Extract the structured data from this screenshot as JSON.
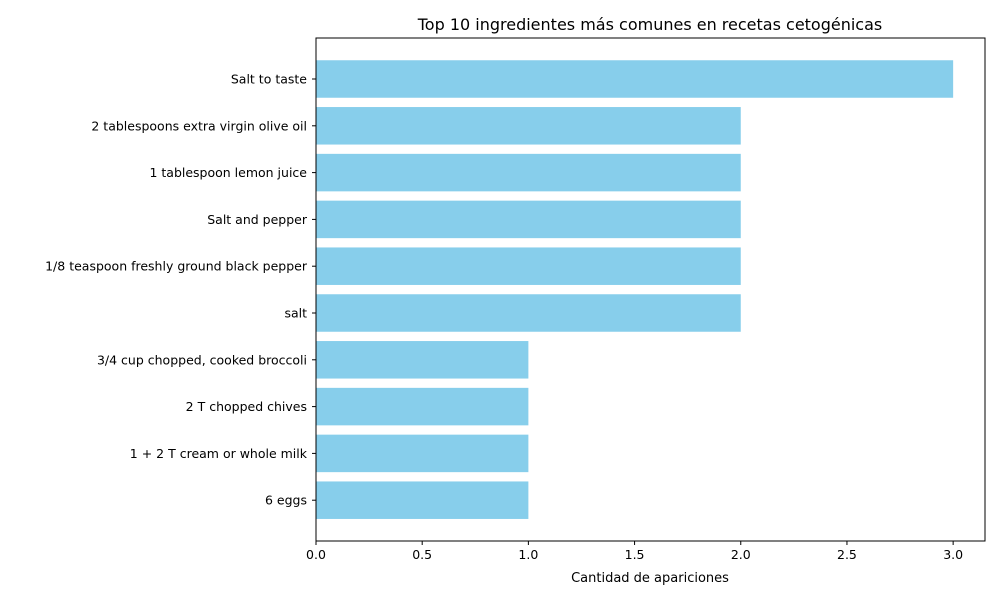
{
  "chart_data": {
    "type": "bar",
    "orientation": "horizontal",
    "title": "Top 10 ingredientes más comunes en recetas cetogénicas",
    "xlabel": "Cantidad de apariciones",
    "ylabel": "",
    "categories": [
      "Salt to taste",
      "2 tablespoons extra virgin olive oil",
      "1 tablespoon lemon juice",
      "Salt and pepper",
      "1/8 teaspoon freshly ground black pepper",
      "salt",
      "3/4 cup chopped, cooked broccoli",
      "2 T chopped chives",
      "1 + 2 T cream or whole milk",
      "6 eggs"
    ],
    "values": [
      3,
      2,
      2,
      2,
      2,
      2,
      1,
      1,
      1,
      1
    ],
    "xlim": [
      0,
      3.15
    ],
    "xticks": [
      "0.0",
      "0.5",
      "1.0",
      "1.5",
      "2.0",
      "2.5",
      "3.0"
    ],
    "bar_color": "#87ceeb",
    "grid": false
  }
}
